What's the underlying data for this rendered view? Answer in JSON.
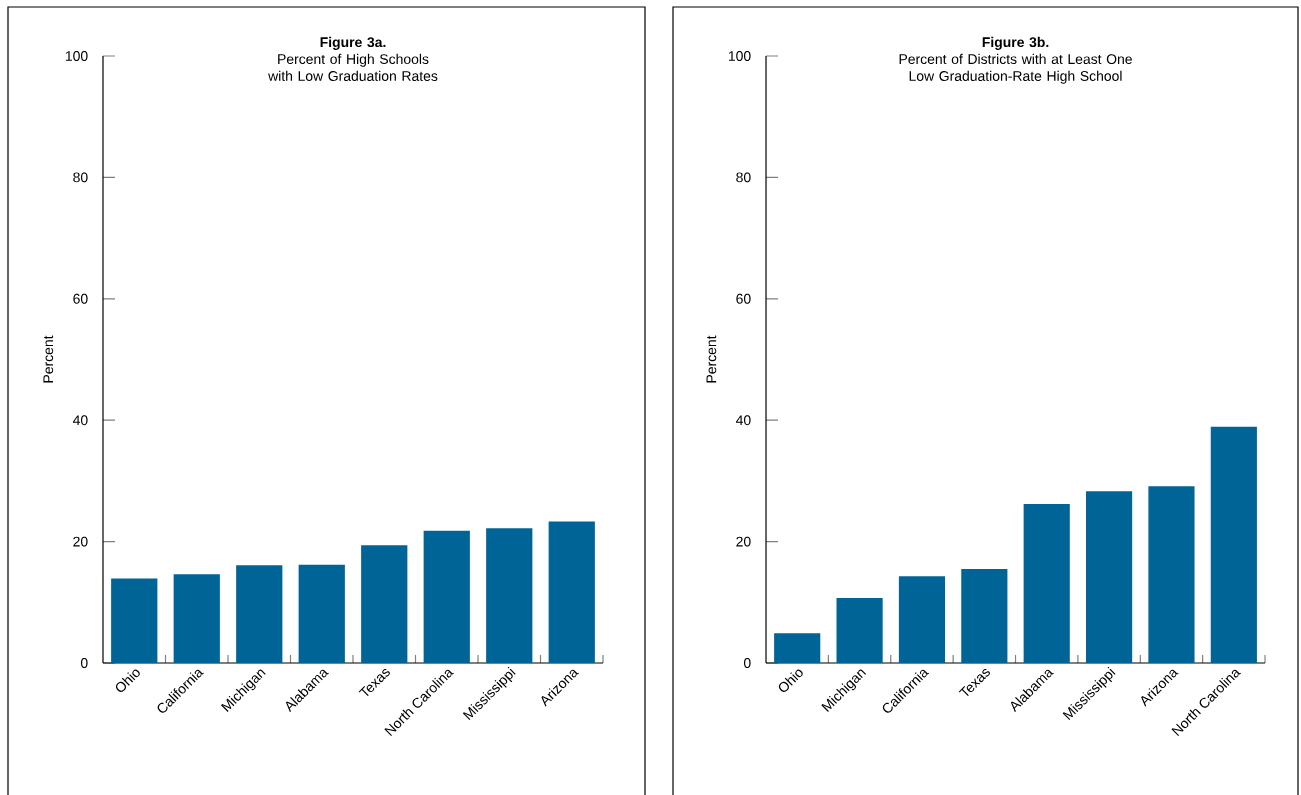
{
  "chart_data": [
    {
      "type": "bar",
      "title": "Figure 3a.",
      "subtitle": "Percent of High Schools with Low Graduation Rates",
      "ylabel": "Percent",
      "categories": [
        "Ohio",
        "California",
        "Michigan",
        "Alabama",
        "Texas",
        "North Carolina",
        "Mississippi",
        "Arizona"
      ],
      "values": [
        13.9,
        14.6,
        16.1,
        16.2,
        19.4,
        21.8,
        22.2,
        23.3
      ],
      "color": "#006496",
      "ylim": [
        0,
        100
      ],
      "yticks": [
        0,
        20,
        40,
        60,
        80,
        100
      ],
      "grid": false
    },
    {
      "type": "bar",
      "title": "Figure 3b.",
      "subtitle": "Percent of Districts with at Least One Low Graduation-Rate High School",
      "ylabel": "Percent",
      "categories": [
        "Ohio",
        "Michigan",
        "California",
        "Texas",
        "Alabama",
        "Mississippi",
        "Arizona",
        "North Carolina"
      ],
      "values": [
        4.9,
        10.7,
        14.3,
        15.5,
        26.2,
        28.3,
        29.1,
        38.9
      ],
      "color": "#006496",
      "ylim": [
        0,
        100
      ],
      "yticks": [
        0,
        20,
        40,
        60,
        80,
        100
      ],
      "grid": false
    }
  ]
}
